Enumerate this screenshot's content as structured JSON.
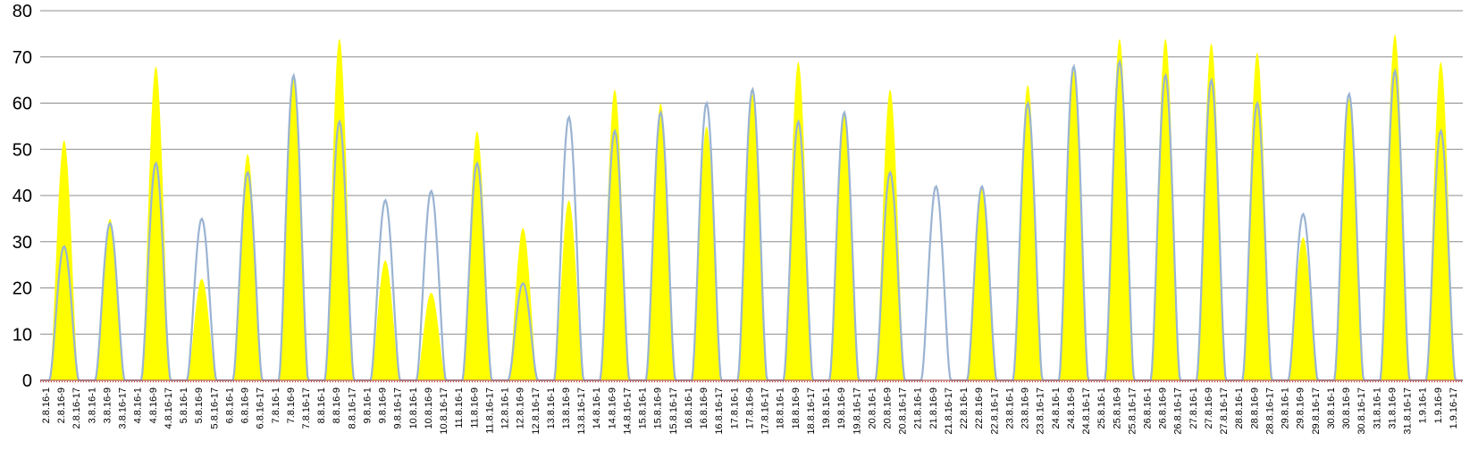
{
  "chart_data": {
    "type": "area",
    "title": "",
    "xlabel": "",
    "ylabel": "",
    "ylim": [
      0,
      80
    ],
    "yticks": [
      0,
      10,
      20,
      30,
      40,
      50,
      60,
      70,
      80
    ],
    "grid": true,
    "legend": "none",
    "days": [
      "2.8.16",
      "3.8.16",
      "4.8.16",
      "5.8.16",
      "6.8.16",
      "7.8.16",
      "8.8.16",
      "9.8.16",
      "10.8.16",
      "11.8.16",
      "12.8.16",
      "13.8.16",
      "14.8.16",
      "15.8.16",
      "16.8.16",
      "17.8.16",
      "18.8.16",
      "19.8.16",
      "20.8.16",
      "21.8.16",
      "22.8.16",
      "23.8.16",
      "24.8.16",
      "25.8.16",
      "26.8.16",
      "27.8.16",
      "28.8.16",
      "29.8.16",
      "30.8.16",
      "31.8.16",
      "1.9.16"
    ],
    "hour_labels": [
      "1",
      "9",
      "17"
    ],
    "series": [
      {
        "color": "#ffff00",
        "style": "area",
        "daily_peaks": [
          52,
          35,
          68,
          22,
          49,
          66,
          74,
          26,
          19,
          54,
          33,
          39,
          63,
          60,
          55,
          62,
          69,
          58,
          63,
          0,
          42,
          64,
          67,
          74,
          74,
          73,
          71,
          31,
          61,
          75,
          69
        ]
      },
      {
        "color": "#9ab4d2",
        "style": "line",
        "daily_peaks": [
          29,
          34,
          47,
          35,
          45,
          66,
          56,
          39,
          41,
          47,
          21,
          57,
          54,
          58,
          60,
          63,
          56,
          58,
          45,
          42,
          42,
          60,
          68,
          69,
          66,
          65,
          60,
          36,
          62,
          67,
          54
        ]
      }
    ]
  }
}
